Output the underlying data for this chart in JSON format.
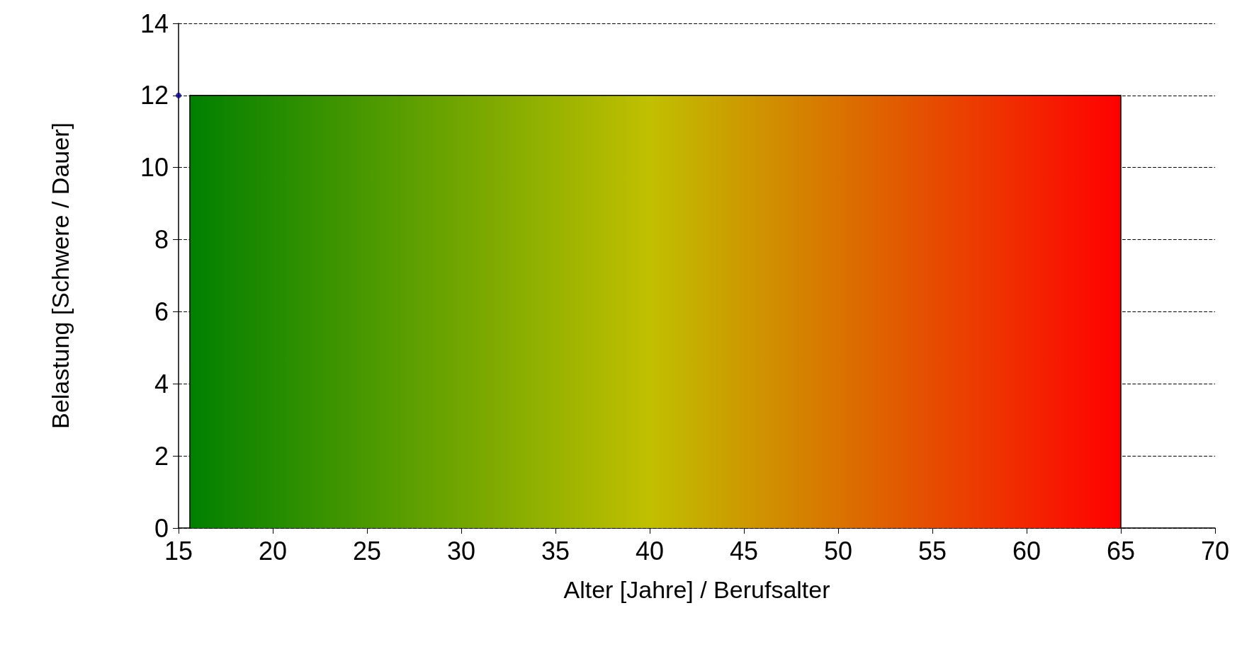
{
  "chart_data": {
    "type": "area",
    "xlabel": "Alter [Jahre] / Berufsalter",
    "ylabel": "Belastung [Schwere / Dauer]",
    "xlim": [
      15,
      70
    ],
    "xticks": [
      15,
      20,
      25,
      30,
      35,
      40,
      45,
      50,
      55,
      60,
      65,
      70
    ],
    "ylim": [
      0,
      14
    ],
    "yticks": [
      0,
      2,
      4,
      6,
      8,
      10,
      12,
      14
    ],
    "grid": "y",
    "series": [
      {
        "color": "#000000",
        "x": [
          15.6,
          15.6,
          40,
          65,
          65
        ],
        "values": [
          0,
          12,
          12,
          12,
          0
        ],
        "colors": [
          "#008000",
          "#008000",
          "#c0c000",
          "#ff0000",
          "#ff0000"
        ],
        "marker": "none"
      },
      {
        "type": "scatter",
        "color": "#00008b",
        "x": [
          15
        ],
        "values": [
          12
        ],
        "marker": "circle"
      }
    ]
  }
}
